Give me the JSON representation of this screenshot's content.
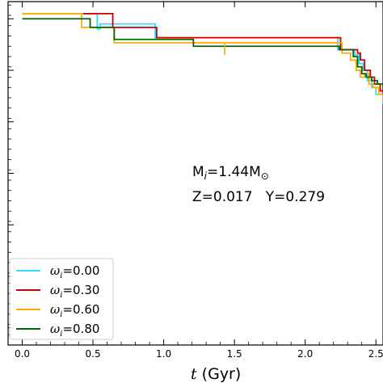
{
  "chart_data": {
    "type": "line",
    "xlabel_symbol": "t",
    "xlabel_unit": " (Gyr)",
    "xlim": [
      -0.1,
      2.55
    ],
    "ylim": [
      0,
      1
    ],
    "x_ticks": [
      {
        "value": 0.0,
        "label": "0.0"
      },
      {
        "value": 0.5,
        "label": "0.5"
      },
      {
        "value": 1.0,
        "label": "1.0"
      },
      {
        "value": 1.5,
        "label": "1.5"
      },
      {
        "value": 2.0,
        "label": "2.0"
      },
      {
        "value": 2.5,
        "label": "2.5"
      }
    ],
    "annotations": [
      {
        "id": "mass",
        "text": "M",
        "sub": "i",
        "rest": "=1.44M",
        "sub2": "⊙"
      },
      {
        "id": "composition",
        "text": "Z=0.017   Y=0.279"
      }
    ],
    "legend_position": "lower-left",
    "series": [
      {
        "name": "ω",
        "sub": "i",
        "value_label": "=0.00",
        "color": "#33ddff",
        "points": [
          [
            0.0,
            0.965
          ],
          [
            0.52,
            0.965
          ],
          [
            0.53,
            0.92
          ],
          [
            0.55,
            0.935
          ],
          [
            0.93,
            0.935
          ],
          [
            0.94,
            0.895
          ],
          [
            2.2,
            0.895
          ],
          [
            2.23,
            0.86
          ],
          [
            2.35,
            0.845
          ],
          [
            2.38,
            0.82
          ],
          [
            2.41,
            0.8
          ],
          [
            2.44,
            0.77
          ],
          [
            2.47,
            0.75
          ],
          [
            2.5,
            0.73
          ],
          [
            2.55,
            0.7
          ]
        ]
      },
      {
        "name": "ω",
        "sub": "i",
        "value_label": "=0.30",
        "color": "#cc0000",
        "points": [
          [
            0.43,
            0.965
          ],
          [
            0.63,
            0.965
          ],
          [
            0.64,
            0.925
          ],
          [
            0.94,
            0.925
          ],
          [
            0.95,
            0.895
          ],
          [
            2.22,
            0.895
          ],
          [
            2.25,
            0.86
          ],
          [
            2.37,
            0.85
          ],
          [
            2.39,
            0.83
          ],
          [
            2.42,
            0.8
          ],
          [
            2.46,
            0.78
          ],
          [
            2.49,
            0.76
          ],
          [
            2.53,
            0.74
          ],
          [
            2.55,
            0.73
          ]
        ]
      },
      {
        "name": "ω",
        "sub": "i",
        "value_label": "=0.60",
        "color": "#ffaa00",
        "points": [
          [
            0.0,
            0.965
          ],
          [
            0.41,
            0.965
          ],
          [
            0.42,
            0.925
          ],
          [
            0.63,
            0.925
          ],
          [
            0.65,
            0.88
          ],
          [
            2.22,
            0.88
          ],
          [
            2.26,
            0.85
          ],
          [
            2.32,
            0.83
          ],
          [
            2.36,
            0.8
          ],
          [
            2.39,
            0.78
          ],
          [
            2.42,
            0.79
          ],
          [
            2.45,
            0.76
          ],
          [
            2.48,
            0.75
          ],
          [
            2.52,
            0.73
          ],
          [
            2.55,
            0.71
          ]
        ]
      },
      {
        "name": "ω",
        "sub": "i",
        "value_label": "=0.80",
        "color": "#006600",
        "points": [
          [
            0.0,
            0.95
          ],
          [
            0.47,
            0.95
          ],
          [
            0.48,
            0.925
          ],
          [
            0.63,
            0.925
          ],
          [
            0.65,
            0.89
          ],
          [
            1.2,
            0.89
          ],
          [
            1.21,
            0.87
          ],
          [
            2.22,
            0.87
          ],
          [
            2.24,
            0.86
          ],
          [
            2.34,
            0.84
          ],
          [
            2.37,
            0.81
          ],
          [
            2.4,
            0.79
          ],
          [
            2.43,
            0.78
          ],
          [
            2.47,
            0.77
          ],
          [
            2.51,
            0.76
          ],
          [
            2.55,
            0.75
          ]
        ]
      }
    ]
  }
}
